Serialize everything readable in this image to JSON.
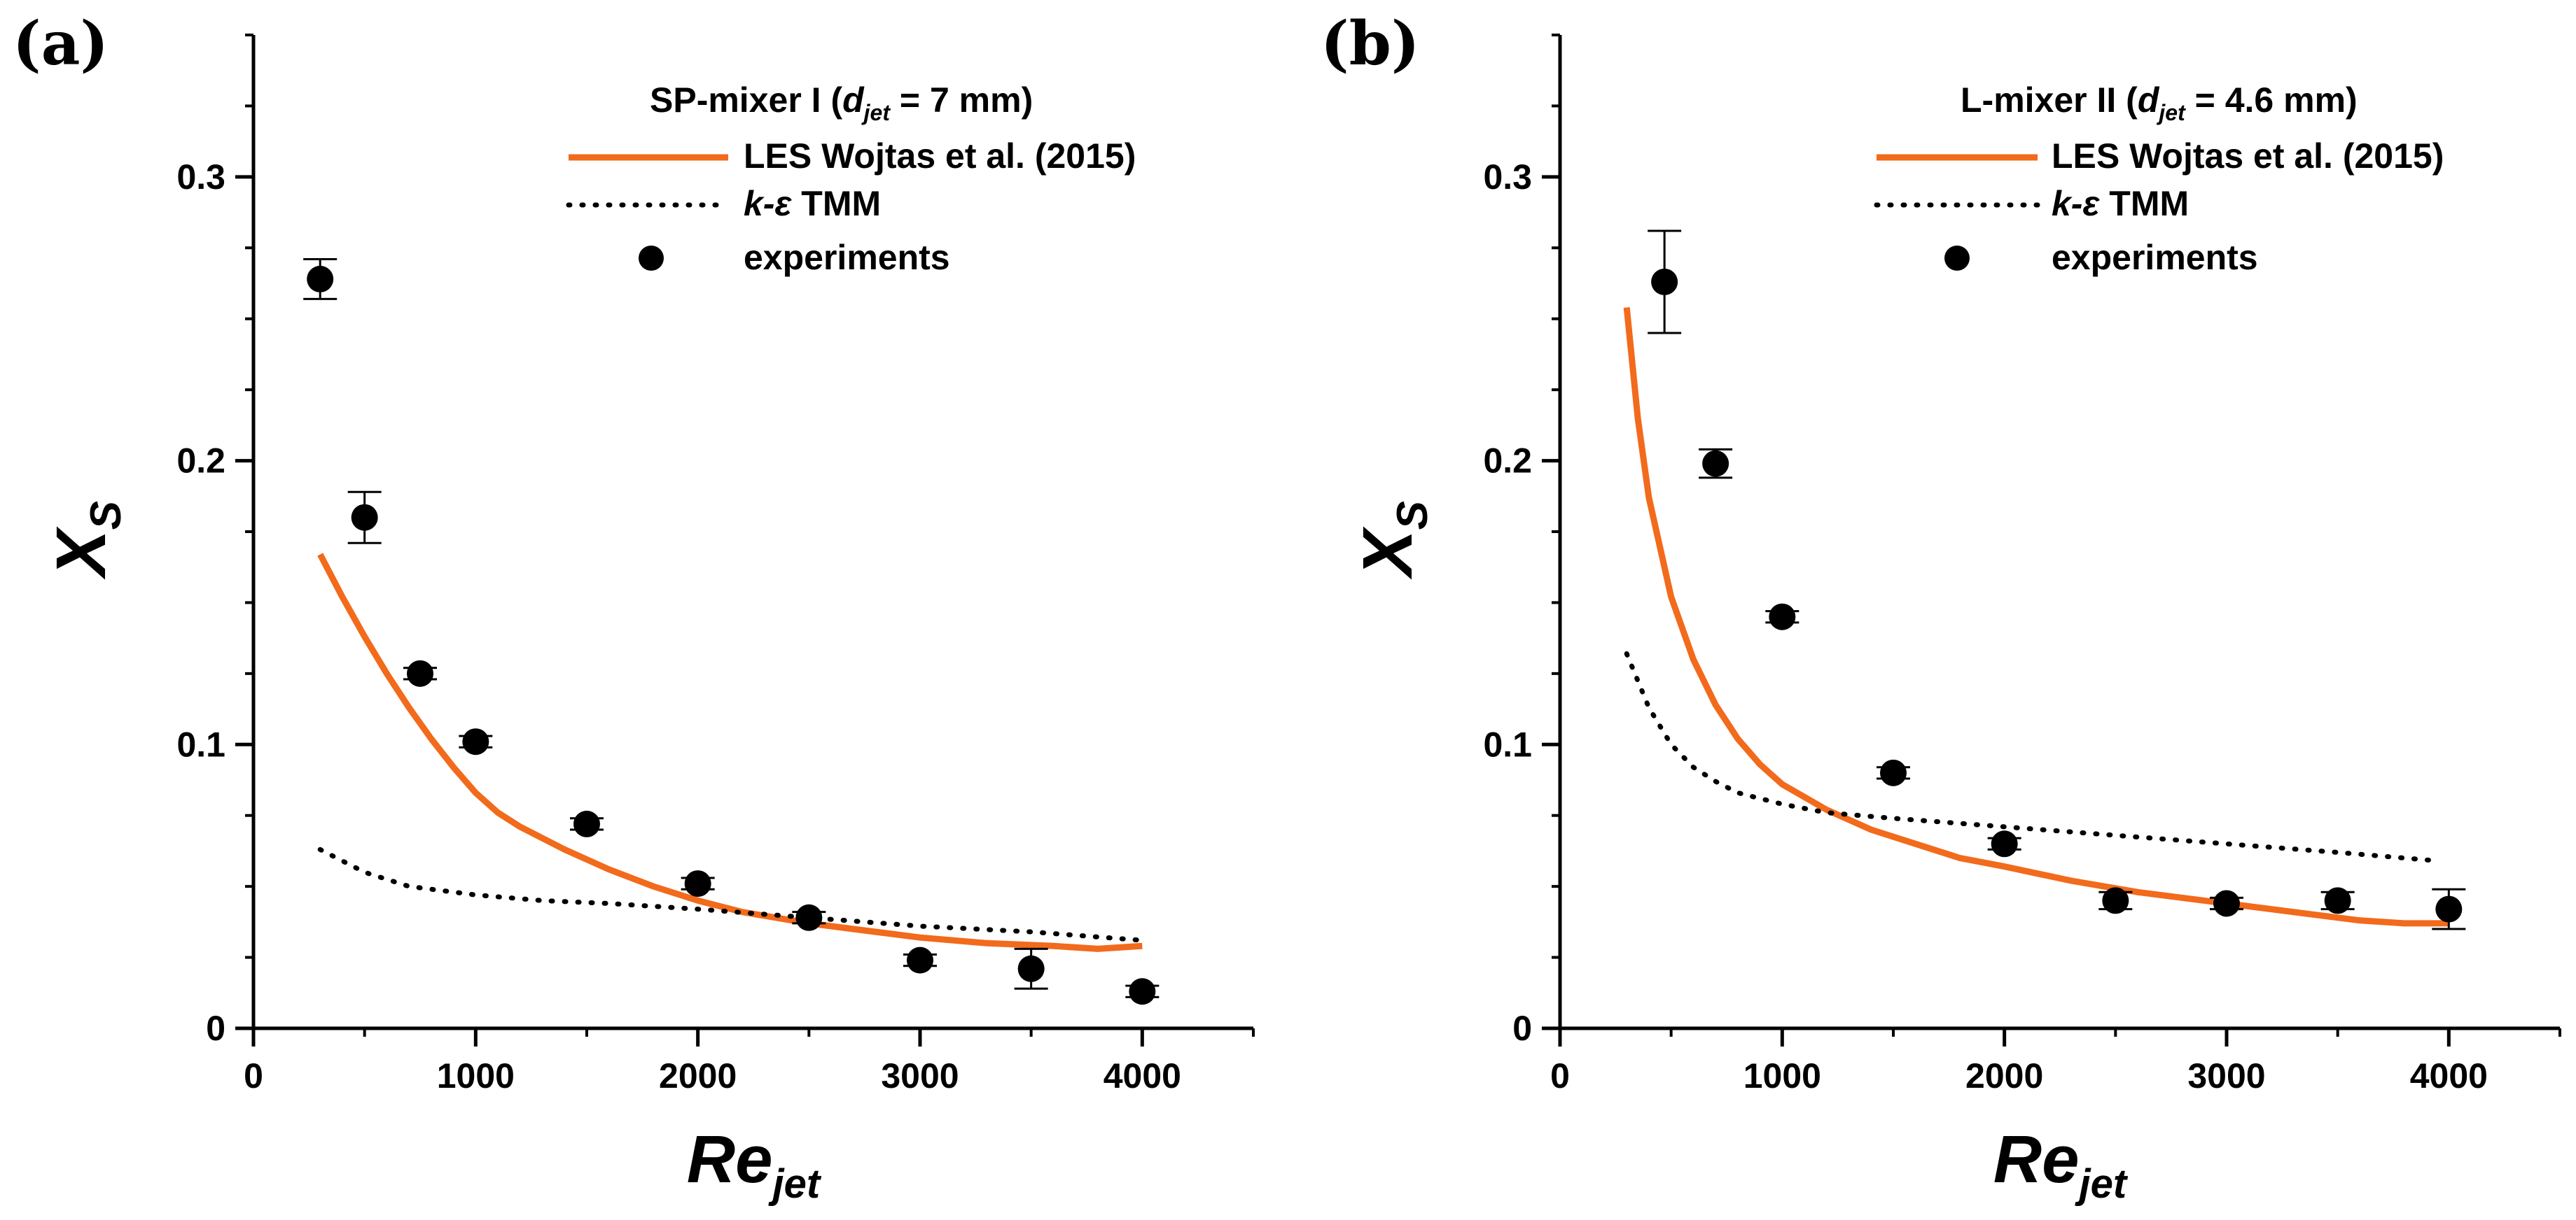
{
  "colors": {
    "les": "#f26a1b",
    "tmm": "#000000",
    "experiments": "#000000",
    "axis": "#000000"
  },
  "chart_data": [
    {
      "id": "a",
      "type": "scatter",
      "panel_label": "(a)",
      "title": {
        "prefix": "SP-mixer I (",
        "var": "d",
        "sub": "jet",
        "suffix": " = 7 mm)"
      },
      "xlabel": {
        "main": "Re",
        "sub": "jet"
      },
      "ylabel": {
        "main": "X",
        "sub": "S"
      },
      "xlim": [
        0,
        4500
      ],
      "ylim": [
        0,
        0.35
      ],
      "xticks": [
        0,
        1000,
        2000,
        3000,
        4000
      ],
      "xticklabels": [
        "0",
        "1000",
        "2000",
        "3000",
        "4000"
      ],
      "yticks": [
        0,
        0.1,
        0.2,
        0.3
      ],
      "yticklabels": [
        "0",
        "0.1",
        "0.2",
        "0.3"
      ],
      "legend": {
        "les": "LES Wojtas et al. (2015)",
        "tmm_var": "k-ε",
        "tmm_suffix": " TMM",
        "experiments": "experiments"
      },
      "series": [
        {
          "name": "LES Wojtas et al. (2015)",
          "style": "line",
          "x": [
            300,
            400,
            500,
            600,
            700,
            800,
            900,
            1000,
            1100,
            1200,
            1400,
            1600,
            1800,
            2000,
            2200,
            2500,
            2800,
            3000,
            3300,
            3600,
            3800,
            4000
          ],
          "y": [
            0.167,
            0.152,
            0.138,
            0.125,
            0.113,
            0.102,
            0.092,
            0.083,
            0.076,
            0.071,
            0.063,
            0.056,
            0.05,
            0.045,
            0.041,
            0.037,
            0.034,
            0.032,
            0.03,
            0.029,
            0.028,
            0.029
          ]
        },
        {
          "name": "k-ε TMM",
          "style": "dotted",
          "x": [
            300,
            500,
            700,
            1000,
            1300,
            1600,
            2000,
            2500,
            3000,
            3500,
            4000
          ],
          "y": [
            0.063,
            0.055,
            0.05,
            0.047,
            0.045,
            0.044,
            0.042,
            0.039,
            0.036,
            0.034,
            0.031
          ]
        },
        {
          "name": "experiments",
          "style": "markers",
          "x": [
            300,
            500,
            750,
            1000,
            1500,
            2000,
            2500,
            3000,
            3500,
            4000
          ],
          "y": [
            0.264,
            0.18,
            0.125,
            0.101,
            0.072,
            0.051,
            0.039,
            0.024,
            0.021,
            0.013
          ],
          "err": [
            0.007,
            0.009,
            0.002,
            0.002,
            0.002,
            0.002,
            0.002,
            0.002,
            0.007,
            0.002
          ]
        }
      ]
    },
    {
      "id": "b",
      "type": "scatter",
      "panel_label": "(b)",
      "title": {
        "prefix": "L-mixer II (",
        "var": "d",
        "sub": "jet",
        "suffix": " = 4.6 mm)"
      },
      "xlabel": {
        "main": "Re",
        "sub": "jet"
      },
      "ylabel": {
        "main": "X",
        "sub": "S"
      },
      "xlim": [
        0,
        4500
      ],
      "ylim": [
        0,
        0.35
      ],
      "xticks": [
        0,
        1000,
        2000,
        3000,
        4000
      ],
      "xticklabels": [
        "0",
        "1000",
        "2000",
        "3000",
        "4000"
      ],
      "yticks": [
        0,
        0.1,
        0.2,
        0.3
      ],
      "yticklabels": [
        "0",
        "0.1",
        "0.2",
        "0.3"
      ],
      "legend": {
        "les": "LES Wojtas et al. (2015)",
        "tmm_var": "k-ε",
        "tmm_suffix": " TMM",
        "experiments": "experiments"
      },
      "series": [
        {
          "name": "LES Wojtas et al. (2015)",
          "style": "line",
          "x": [
            300,
            350,
            400,
            500,
            600,
            700,
            800,
            900,
            1000,
            1200,
            1400,
            1600,
            1800,
            2000,
            2300,
            2600,
            3000,
            3300,
            3600,
            3800,
            4000
          ],
          "y": [
            0.254,
            0.215,
            0.187,
            0.152,
            0.13,
            0.114,
            0.102,
            0.093,
            0.086,
            0.077,
            0.07,
            0.065,
            0.06,
            0.057,
            0.052,
            0.048,
            0.044,
            0.041,
            0.038,
            0.037,
            0.037
          ]
        },
        {
          "name": "k-ε TMM",
          "style": "dotted",
          "x": [
            300,
            400,
            500,
            600,
            700,
            800,
            1000,
            1200,
            1500,
            2000,
            2500,
            3000,
            3500,
            3950
          ],
          "y": [
            0.132,
            0.113,
            0.1,
            0.092,
            0.087,
            0.083,
            0.079,
            0.076,
            0.074,
            0.071,
            0.068,
            0.065,
            0.062,
            0.059
          ]
        },
        {
          "name": "experiments",
          "style": "markers",
          "x": [
            470,
            700,
            1000,
            1500,
            2000,
            2500,
            3000,
            3500,
            4000
          ],
          "y": [
            0.263,
            0.199,
            0.145,
            0.09,
            0.065,
            0.045,
            0.044,
            0.045,
            0.042
          ],
          "err": [
            0.018,
            0.005,
            0.002,
            0.002,
            0.002,
            0.003,
            0.002,
            0.003,
            0.007
          ]
        }
      ]
    }
  ]
}
